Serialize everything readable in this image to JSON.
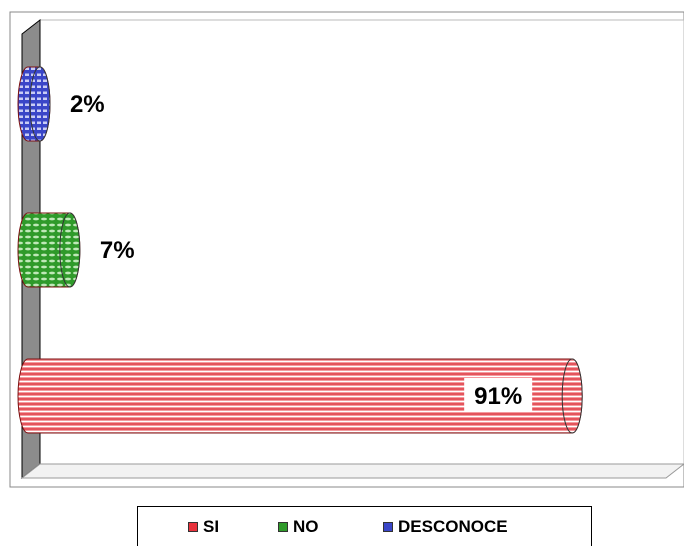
{
  "chart_data": {
    "type": "bar",
    "orientation": "horizontal",
    "shape": "cylinder-3d",
    "categories": [
      "SI",
      "NO",
      "DESCONOCE"
    ],
    "values": [
      91,
      7,
      2
    ],
    "data_labels": [
      "91%",
      "7%",
      "2%"
    ],
    "colors": [
      "#e8323c",
      "#2f9a2a",
      "#3a46c8"
    ],
    "xlim": [
      0,
      100
    ],
    "legend": {
      "position": "bottom",
      "entries": [
        "SI",
        "NO",
        "DESCONOCE"
      ]
    }
  }
}
